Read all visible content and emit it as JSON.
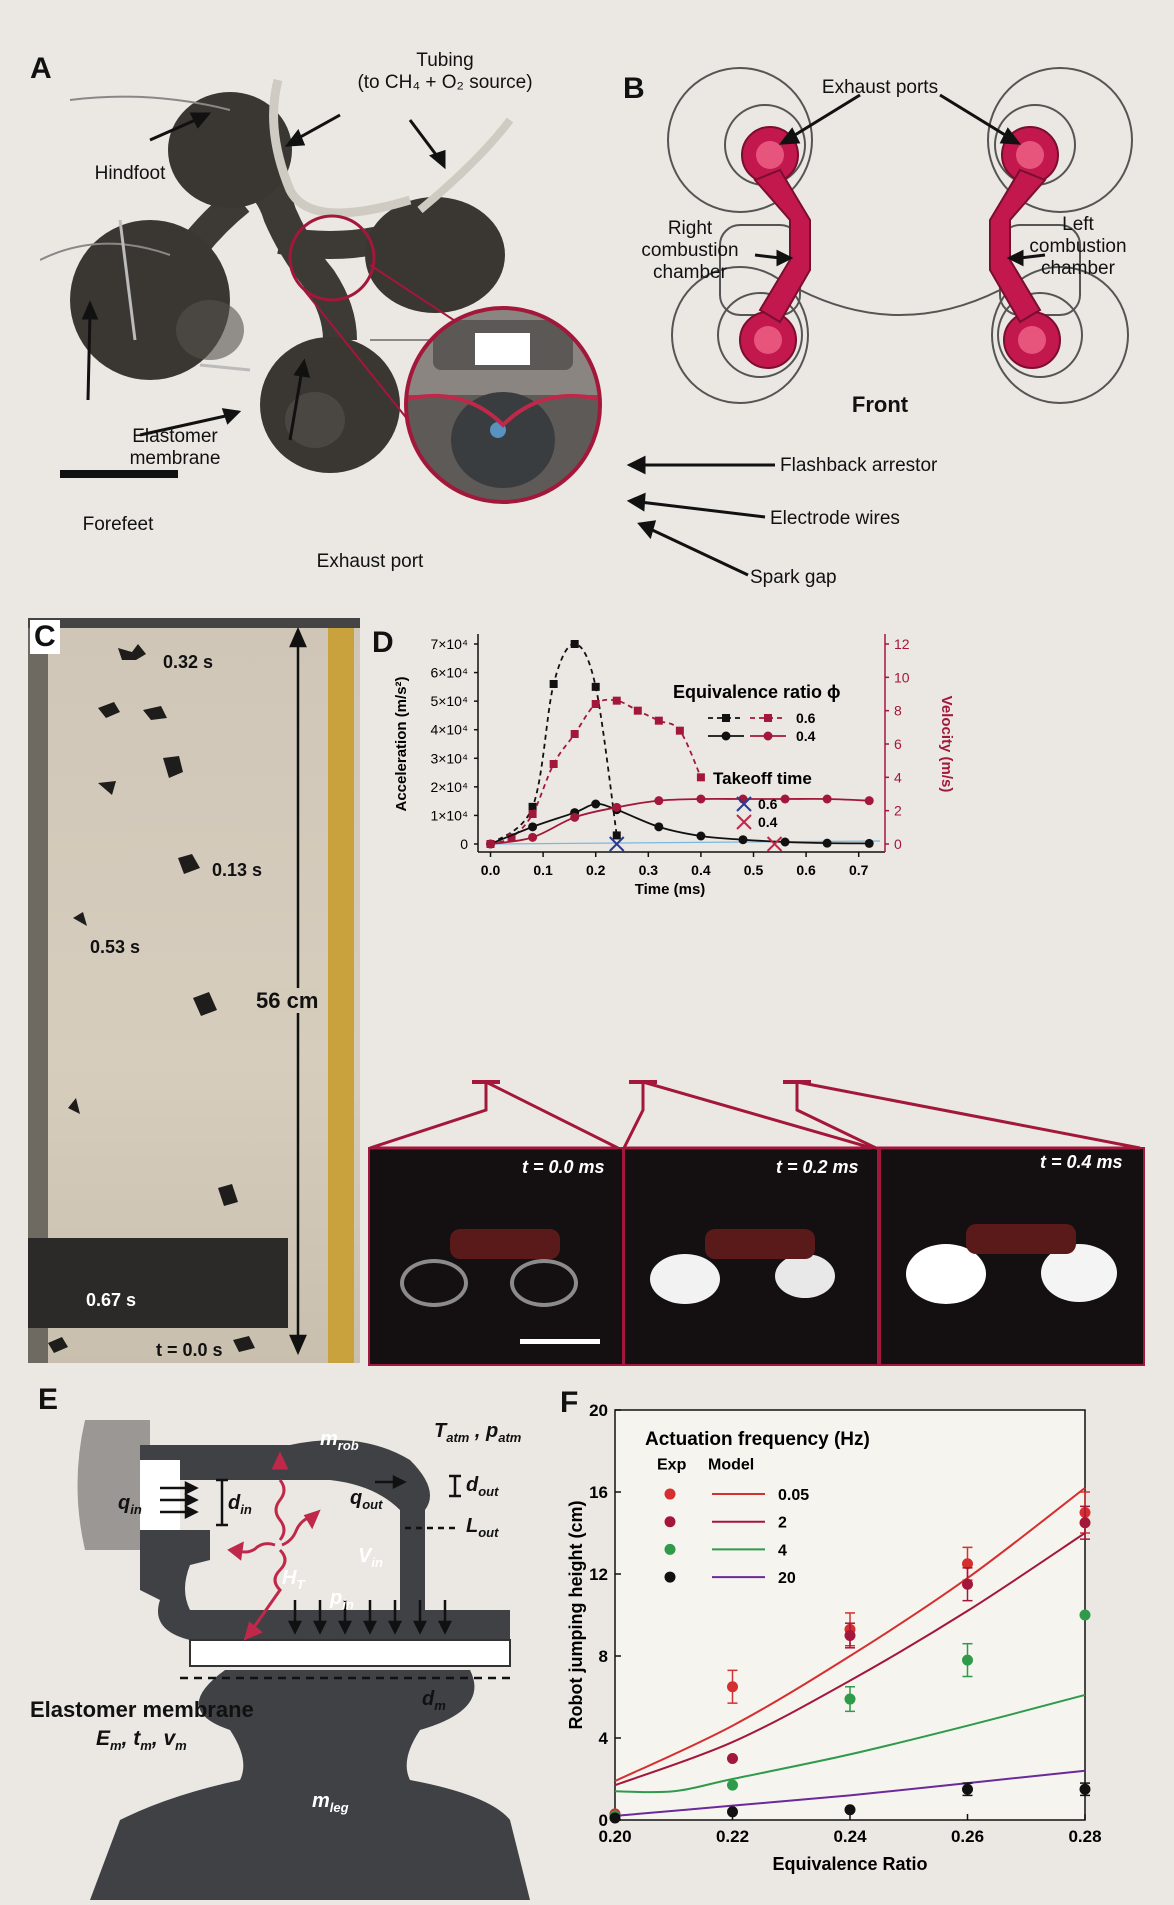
{
  "panels": {
    "A": {
      "letter": "A",
      "labels": {
        "tubing": "Tubing\n(to CH₄ + O₂ source)",
        "hindfoot": "Hindfoot",
        "elastomer": "Elastomer\nmembrane",
        "forefeet": "Forefeet",
        "exhaust": "Exhaust port",
        "flashback": "Flashback arrestor",
        "electrode": "Electrode wires",
        "spark": "Spark gap"
      }
    },
    "B": {
      "letter": "B",
      "labels": {
        "exhaust_ports": "Exhaust ports",
        "right_chamber": "Right\ncombustion\nchamber",
        "left_chamber": "Left\ncombustion\nchamber",
        "front": "Front"
      }
    },
    "C": {
      "letter": "C",
      "times": [
        "0.32 s",
        "0.13 s",
        "0.53 s",
        "0.67 s",
        "t = 0.0 s"
      ],
      "height_label": "56 cm"
    },
    "D": {
      "letter": "D",
      "frames": [
        "t = 0.0 ms",
        "t = 0.2 ms",
        "t = 0.4 ms"
      ]
    },
    "E": {
      "letter": "E",
      "labels": {
        "m_rob": "m",
        "m_rob_sub": "rob",
        "T_atm": "T",
        "T_atm_sub": "atm",
        "p_atm": "p",
        "p_atm_sub": "atm",
        "q_in": "q",
        "q_in_sub": "in",
        "d_in": "d",
        "d_in_sub": "in",
        "q_out": "q",
        "q_out_sub": "out",
        "d_out": "d",
        "d_out_sub": "out",
        "L_out": "L",
        "L_out_sub": "out",
        "V_in": "V",
        "V_in_sub": "in",
        "H_T": "H",
        "H_T_sub": "T",
        "p_in": "p",
        "p_in_sub": "in",
        "d_m": "d",
        "d_m_sub": "m",
        "membrane": "Elastomer membrane",
        "membrane_props": "E",
        "m_leg": "m",
        "m_leg_sub": "leg"
      }
    },
    "F": {
      "letter": "F"
    }
  },
  "colors": {
    "crimson": "#a3173a",
    "dark": "#111111",
    "red_dot": "#d62f2f",
    "green": "#2e9a4a",
    "purple": "#6a2a9a"
  },
  "chart_data": [
    {
      "type": "line",
      "panel": "D",
      "xlabel": "Time (ms)",
      "ylabel": "Acceleration (m/s²)",
      "y2label": "Velocity (m/s)",
      "xlim": [
        -0.02,
        0.75
      ],
      "ylim": [
        0,
        70000
      ],
      "y2lim": [
        0,
        12
      ],
      "x_ticks": [
        0.0,
        0.1,
        0.2,
        0.3,
        0.4,
        0.5,
        0.6,
        0.7
      ],
      "x_tick_labels": [
        "0.0",
        "0.1",
        "0.2",
        "0.3",
        "0.4",
        "0.5",
        "0.6",
        "0.7"
      ],
      "y_ticks": [
        0,
        10000,
        20000,
        30000,
        40000,
        50000,
        60000,
        70000
      ],
      "y_tick_labels": [
        "0",
        "1×10⁴",
        "2×10⁴",
        "3×10⁴",
        "4×10⁴",
        "5×10⁴",
        "6×10⁴",
        "7×10⁴"
      ],
      "y2_ticks": [
        0,
        2,
        4,
        6,
        8,
        10,
        12
      ],
      "legend_title": "Equivalence ratio ϕ",
      "legend_entries": [
        "0.6",
        "0.4"
      ],
      "takeoff_title": "Takeoff time",
      "takeoff_entries": [
        "0.6",
        "0.4"
      ],
      "takeoff_times": [
        0.24,
        0.54
      ],
      "series": [
        {
          "name": "0.6",
          "quantity": "acceleration",
          "color": "#111111",
          "dashed": true,
          "marker": "square",
          "x": [
            0.0,
            0.08,
            0.12,
            0.16,
            0.2,
            0.24
          ],
          "y": [
            0,
            13000,
            56000,
            70000,
            55000,
            3000
          ]
        },
        {
          "name": "0.6",
          "quantity": "velocity",
          "color": "#a3173a",
          "dashed": true,
          "marker": "square",
          "x": [
            0.0,
            0.04,
            0.08,
            0.12,
            0.16,
            0.2,
            0.24,
            0.28,
            0.32,
            0.36,
            0.4
          ],
          "y": [
            0,
            0.4,
            1.8,
            4.8,
            6.6,
            8.4,
            8.6,
            8.0,
            7.4,
            6.8,
            4.0
          ]
        },
        {
          "name": "0.4",
          "quantity": "acceleration",
          "color": "#111111",
          "dashed": false,
          "marker": "circle",
          "x": [
            0.0,
            0.08,
            0.16,
            0.2,
            0.24,
            0.32,
            0.4,
            0.48,
            0.56,
            0.64,
            0.72
          ],
          "y": [
            0,
            6000,
            11000,
            14000,
            12000,
            6000,
            2800,
            1500,
            700,
            300,
            200
          ]
        },
        {
          "name": "0.4",
          "quantity": "velocity",
          "color": "#a3173a",
          "dashed": false,
          "marker": "circle",
          "x": [
            0.0,
            0.08,
            0.16,
            0.24,
            0.32,
            0.4,
            0.48,
            0.56,
            0.64,
            0.72
          ],
          "y": [
            0,
            0.4,
            1.6,
            2.2,
            2.6,
            2.7,
            2.7,
            2.7,
            2.7,
            2.6
          ]
        }
      ]
    },
    {
      "type": "scatter",
      "panel": "F",
      "xlabel": "Equivalence Ratio",
      "ylabel": "Robot jumping height (cm)",
      "xlim": [
        0.2,
        0.28
      ],
      "ylim": [
        0,
        20
      ],
      "x_ticks": [
        0.2,
        0.22,
        0.24,
        0.26,
        0.28
      ],
      "x_tick_labels": [
        "0.20",
        "0.22",
        "0.24",
        "0.26",
        "0.28"
      ],
      "y_ticks": [
        0,
        4,
        8,
        12,
        16,
        20
      ],
      "legend_title": "Actuation frequency (Hz)",
      "legend_col_headers": [
        "Exp",
        "Model"
      ],
      "legend_entries": [
        "0.05",
        "2",
        "4",
        "20"
      ],
      "series": [
        {
          "name": "0.05",
          "color": "#d62f2f",
          "x": [
            0.2,
            0.22,
            0.24,
            0.26,
            0.28
          ],
          "y": [
            0.3,
            6.5,
            9.3,
            12.5,
            15.0
          ],
          "err": [
            0,
            0.8,
            0.8,
            0.8,
            1.0
          ],
          "model_x": [
            0.2,
            0.22,
            0.24,
            0.26,
            0.28
          ],
          "model_y": [
            1.9,
            4.6,
            8.0,
            11.8,
            16.2
          ]
        },
        {
          "name": "2",
          "color": "#a3173a",
          "x": [
            0.2,
            0.22,
            0.24,
            0.26,
            0.28
          ],
          "y": [
            0.2,
            3.0,
            9.0,
            11.5,
            14.5
          ],
          "err": [
            0,
            0,
            0.6,
            0.8,
            0.8
          ],
          "model_x": [
            0.2,
            0.22,
            0.24,
            0.26,
            0.28
          ],
          "model_y": [
            1.7,
            3.8,
            6.8,
            10.2,
            14.0
          ]
        },
        {
          "name": "4",
          "color": "#2e9a4a",
          "x": [
            0.2,
            0.22,
            0.24,
            0.26,
            0.28
          ],
          "y": [
            0.2,
            1.7,
            5.9,
            7.8,
            10.0
          ],
          "err": [
            0,
            0,
            0.6,
            0.8,
            0
          ],
          "model_x": [
            0.2,
            0.21,
            0.22,
            0.24,
            0.26,
            0.28
          ],
          "model_y": [
            1.4,
            1.4,
            2.0,
            3.2,
            4.6,
            6.1
          ]
        },
        {
          "name": "20",
          "color": "#111111",
          "x": [
            0.2,
            0.22,
            0.24,
            0.26,
            0.28
          ],
          "y": [
            0.1,
            0.4,
            0.5,
            1.5,
            1.5
          ],
          "err": [
            0,
            0,
            0,
            0.3,
            0.3
          ],
          "model_x": [
            0.2,
            0.22,
            0.24,
            0.26,
            0.28
          ],
          "model_y": [
            0.2,
            0.7,
            1.2,
            1.8,
            2.4
          ],
          "model_color": "#6a2a9a"
        }
      ]
    }
  ]
}
